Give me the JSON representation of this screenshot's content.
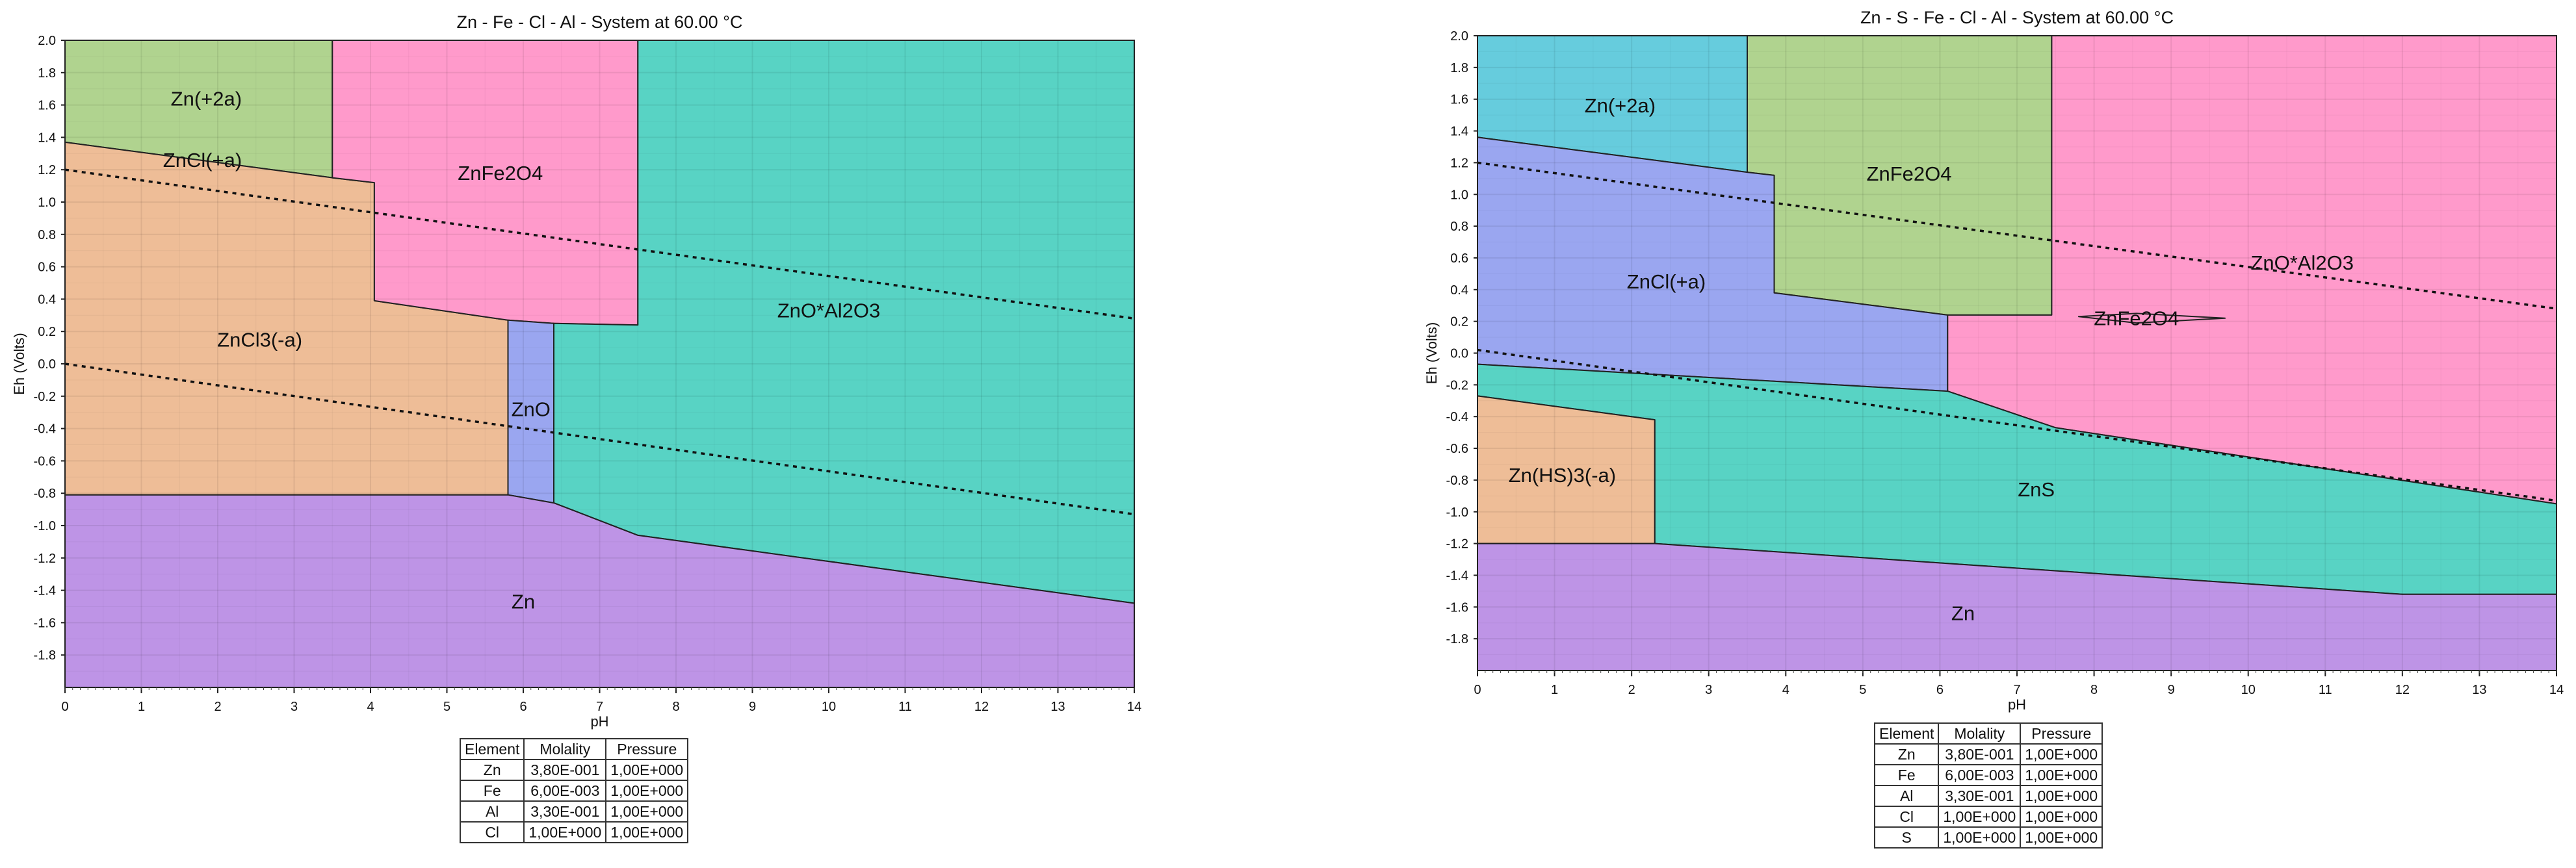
{
  "chart_data": [
    {
      "type": "area",
      "title": "Zn - Fe - Cl - Al - System at 60.00 °C",
      "xlabel": "pH",
      "ylabel": "Eh (Volts)",
      "xlim": [
        0,
        14
      ],
      "ylim": [
        -2.0,
        2.0
      ],
      "x_ticks": [
        "0",
        "1",
        "2",
        "3",
        "4",
        "5",
        "6",
        "7",
        "8",
        "9",
        "10",
        "11",
        "12",
        "13",
        "14"
      ],
      "y_ticks": [
        "2.0",
        "1.8",
        "1.6",
        "1.4",
        "1.2",
        "1.0",
        "0.8",
        "0.6",
        "0.4",
        "0.2",
        "0.0",
        "-0.2",
        "-0.4",
        "-0.6",
        "-0.8",
        "-1.0",
        "-1.2",
        "-1.4",
        "-1.6",
        "-1.8"
      ],
      "grid": true,
      "regions": [
        {
          "label": "Zn(+2a)",
          "color": "#B0D38F",
          "label_at": [
            1.85,
            1.63
          ],
          "points": [
            [
              0,
              2.0
            ],
            [
              3.5,
              2.0
            ],
            [
              3.5,
              1.15
            ],
            [
              0,
              1.37
            ]
          ]
        },
        {
          "label": "ZnCl(+a)",
          "color": "#EEBD97",
          "label_at": [
            1.8,
            1.25
          ],
          "points": [
            [
              0,
              1.37
            ],
            [
              3.5,
              1.15
            ],
            [
              4.05,
              1.12
            ],
            [
              4.05,
              0.39
            ],
            [
              5.8,
              0.27
            ],
            [
              5.8,
              -0.81
            ],
            [
              0,
              -0.81
            ]
          ]
        },
        {
          "label": "ZnCl3(-a)",
          "color": "#EEBD97",
          "label_at": [
            2.55,
            0.14
          ],
          "points": []
        },
        {
          "label": "ZnFe2O4",
          "color": "#FF9ACB",
          "label_at": [
            5.7,
            1.17
          ],
          "points": [
            [
              3.5,
              2.0
            ],
            [
              7.5,
              2.0
            ],
            [
              7.5,
              0.24
            ],
            [
              6.4,
              0.25
            ],
            [
              5.8,
              0.27
            ],
            [
              4.05,
              0.39
            ],
            [
              4.05,
              1.12
            ],
            [
              3.5,
              1.15
            ]
          ]
        },
        {
          "label": "ZnO",
          "color": "#9AA6F0",
          "label_at": [
            6.1,
            -0.29
          ],
          "points": [
            [
              5.8,
              0.27
            ],
            [
              6.4,
              0.25
            ],
            [
              6.4,
              -0.86
            ],
            [
              5.8,
              -0.81
            ]
          ]
        },
        {
          "label": "ZnO*Al2O3",
          "color": "#58D3C4",
          "label_at": [
            10.0,
            0.32
          ],
          "points": [
            [
              7.5,
              2.0
            ],
            [
              14,
              2.0
            ],
            [
              14,
              -1.48
            ],
            [
              7.5,
              -1.06
            ],
            [
              6.4,
              -0.86
            ],
            [
              6.4,
              0.25
            ],
            [
              7.5,
              0.24
            ]
          ]
        },
        {
          "label": "Zn",
          "color": "#BE94E6",
          "label_at": [
            6.0,
            -1.48
          ],
          "points": [
            [
              0,
              -0.81
            ],
            [
              5.8,
              -0.81
            ],
            [
              6.4,
              -0.86
            ],
            [
              7.5,
              -1.06
            ],
            [
              14,
              -1.48
            ],
            [
              14,
              -2.0
            ],
            [
              0,
              -2.0
            ]
          ]
        }
      ],
      "water_lines": [
        {
          "name": "upper",
          "points": [
            [
              0,
              1.2
            ],
            [
              14,
              0.28
            ]
          ]
        },
        {
          "name": "lower",
          "points": [
            [
              0,
              0.0
            ],
            [
              14,
              -0.93
            ]
          ]
        }
      ],
      "table": {
        "headers": [
          "Element",
          "Molality",
          "Pressure"
        ],
        "rows": [
          [
            "Zn",
            "3,80E-001",
            "1,00E+000"
          ],
          [
            "Fe",
            "6,00E-003",
            "1,00E+000"
          ],
          [
            "Al",
            "3,30E-001",
            "1,00E+000"
          ],
          [
            "Cl",
            "1,00E+000",
            "1,00E+000"
          ]
        ]
      }
    },
    {
      "type": "area",
      "title": "Zn - S - Fe - Cl - Al - System at 60.00 °C",
      "xlabel": "pH",
      "ylabel": "Eh (Volts)",
      "xlim": [
        0,
        14
      ],
      "ylim": [
        -2.0,
        2.0
      ],
      "x_ticks": [
        "0",
        "1",
        "2",
        "3",
        "4",
        "5",
        "6",
        "7",
        "8",
        "9",
        "10",
        "11",
        "12",
        "13",
        "14"
      ],
      "y_ticks": [
        "2.0",
        "1.8",
        "1.6",
        "1.4",
        "1.2",
        "1.0",
        "0.8",
        "0.6",
        "0.4",
        "0.2",
        "0.0",
        "-0.2",
        "-0.4",
        "-0.6",
        "-0.8",
        "-1.0",
        "-1.2",
        "-1.4",
        "-1.6",
        "-1.8"
      ],
      "grid": true,
      "regions": [
        {
          "label": "Zn(+2a)",
          "color": "#66CCDD",
          "label_at": [
            1.85,
            1.55
          ],
          "points": [
            [
              0,
              2.0
            ],
            [
              3.5,
              2.0
            ],
            [
              3.5,
              1.14
            ],
            [
              0,
              1.36
            ]
          ]
        },
        {
          "label": "ZnFe2O4",
          "color": "#B0D38F",
          "label_at": [
            5.6,
            1.12
          ],
          "points": [
            [
              3.5,
              2.0
            ],
            [
              7.45,
              2.0
            ],
            [
              7.45,
              0.24
            ],
            [
              6.1,
              0.24
            ],
            [
              3.85,
              0.38
            ],
            [
              3.85,
              1.12
            ],
            [
              3.5,
              1.14
            ]
          ]
        },
        {
          "label": "ZnCl(+a)",
          "color": "#9AA6F0",
          "label_at": [
            2.45,
            0.44
          ],
          "points": [
            [
              0,
              1.36
            ],
            [
              3.5,
              1.14
            ],
            [
              3.85,
              1.12
            ],
            [
              3.85,
              0.38
            ],
            [
              6.1,
              0.24
            ],
            [
              6.1,
              -0.24
            ],
            [
              0,
              -0.07
            ]
          ]
        },
        {
          "label": "ZnO*Al2O3",
          "color": "#FF9ACB",
          "label_at": [
            10.7,
            0.56
          ],
          "points": [
            [
              7.45,
              2.0
            ],
            [
              14,
              2.0
            ],
            [
              14,
              -0.95
            ],
            [
              7.5,
              -0.47
            ],
            [
              6.1,
              -0.24
            ],
            [
              6.1,
              0.24
            ],
            [
              7.45,
              0.24
            ]
          ]
        },
        {
          "label": "ZnFe2O4",
          "color": "#FF9ACB",
          "label_at": [
            8.55,
            0.21
          ],
          "points": [
            [
              7.8,
              0.23
            ],
            [
              8.55,
              0.25
            ],
            [
              9.7,
              0.22
            ],
            [
              8.55,
              0.19
            ]
          ]
        },
        {
          "label": "ZnS",
          "color": "#58D3C4",
          "label_at": [
            7.25,
            -0.87
          ],
          "points": [
            [
              0,
              -0.07
            ],
            [
              6.1,
              -0.24
            ],
            [
              7.5,
              -0.47
            ],
            [
              14,
              -0.95
            ],
            [
              14,
              -1.52
            ],
            [
              12,
              -1.52
            ],
            [
              2.3,
              -1.2
            ],
            [
              2.3,
              -0.42
            ],
            [
              0,
              -0.27
            ]
          ]
        },
        {
          "label": "Zn(HS)3(-a)",
          "color": "#EEBD97",
          "label_at": [
            1.1,
            -0.78
          ],
          "points": [
            [
              0,
              -0.27
            ],
            [
              2.3,
              -0.42
            ],
            [
              2.3,
              -1.2
            ],
            [
              0,
              -1.2
            ]
          ]
        },
        {
          "label": "Zn",
          "color": "#BE94E6",
          "label_at": [
            6.3,
            -1.65
          ],
          "points": [
            [
              0,
              -1.2
            ],
            [
              2.3,
              -1.2
            ],
            [
              12,
              -1.52
            ],
            [
              14,
              -1.52
            ],
            [
              14,
              -2.0
            ],
            [
              0,
              -2.0
            ]
          ]
        }
      ],
      "water_lines": [
        {
          "name": "upper",
          "points": [
            [
              0,
              1.2
            ],
            [
              14,
              0.28
            ]
          ]
        },
        {
          "name": "lower",
          "points": [
            [
              0,
              0.02
            ],
            [
              14,
              -0.93
            ]
          ]
        }
      ],
      "table": {
        "headers": [
          "Element",
          "Molality",
          "Pressure"
        ],
        "rows": [
          [
            "Zn",
            "3,80E-001",
            "1,00E+000"
          ],
          [
            "Fe",
            "6,00E-003",
            "1,00E+000"
          ],
          [
            "Al",
            "3,30E-001",
            "1,00E+000"
          ],
          [
            "Cl",
            "1,00E+000",
            "1,00E+000"
          ],
          [
            "S",
            "1,00E+000",
            "1,00E+000"
          ]
        ]
      }
    }
  ]
}
